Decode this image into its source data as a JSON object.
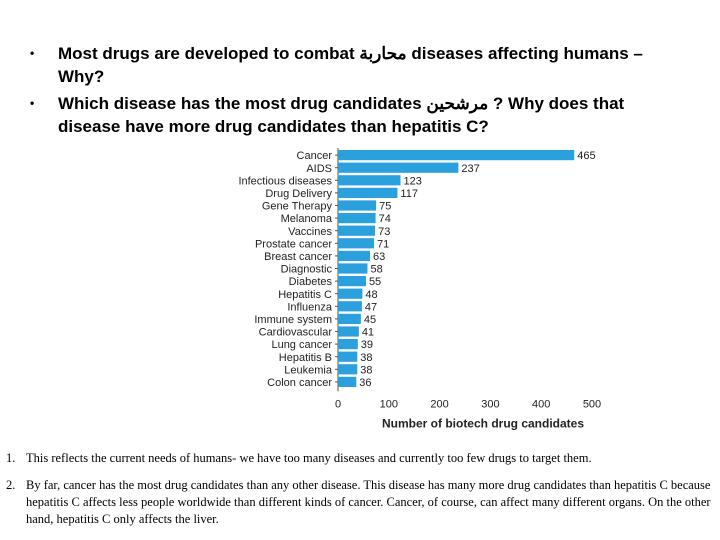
{
  "questions": [
    {
      "bullet": "•",
      "text": "Most drugs are developed to combat محاربة diseases affecting humans – Why?"
    },
    {
      "bullet": "•",
      "text": "Which disease has the most drug candidates مرشحين ? Why does that disease have more drug candidates than hepatitis C?"
    }
  ],
  "chart_data": {
    "type": "bar",
    "orientation": "horizontal",
    "categories": [
      "Cancer",
      "AIDS",
      "Infectious diseases",
      "Drug Delivery",
      "Gene Therapy",
      "Melanoma",
      "Vaccines",
      "Prostate cancer",
      "Breast cancer",
      "Diagnostic",
      "Diabetes",
      "Hepatitis C",
      "Influenza",
      "Immune system",
      "Cardiovascular",
      "Lung cancer",
      "Hepatitis B",
      "Leukemia",
      "Colon cancer"
    ],
    "values": [
      465,
      237,
      123,
      117,
      75,
      74,
      73,
      71,
      63,
      58,
      55,
      48,
      47,
      45,
      41,
      39,
      38,
      38,
      36
    ],
    "xlabel": "Number of biotech drug candidates",
    "xlim": [
      0,
      500
    ],
    "xticks": [
      0,
      100,
      200,
      300,
      400,
      500
    ],
    "bar_color": "#2aa0dc"
  },
  "notes": [
    {
      "num": "1.",
      "text": "This reflects the current needs of humans- we have too many diseases and currently too few drugs to target them."
    },
    {
      "num": "2.",
      "text": "By far, cancer has the most drug candidates than any other disease. This disease has many more drug candidates than hepatitis C because hepatitis C affects less people worldwide than different kinds of cancer. Cancer, of course, can affect many different organs. On the other hand, hepatitis C only affects the liver."
    }
  ]
}
